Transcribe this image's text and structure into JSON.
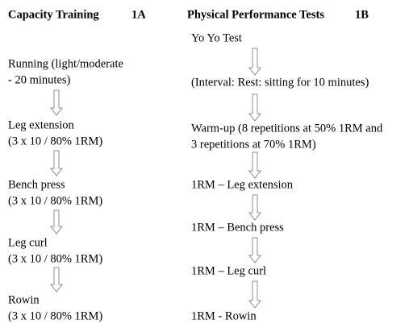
{
  "columns": [
    {
      "title": "Capacity Training",
      "code": "1A",
      "steps": [
        [
          "Running (light/moderate",
          "- 20 minutes)"
        ],
        [
          "Leg extension",
          "(3 x 10 / 80% 1RM)"
        ],
        [
          "Bench press",
          "(3 x 10 / 80% 1RM)"
        ],
        [
          "Leg curl",
          "(3 x 10 / 80% 1RM)"
        ],
        [
          "Rowin",
          "(3 x 10 / 80% 1RM)"
        ]
      ]
    },
    {
      "title": "Physical Performance Tests",
      "code": "1B",
      "steps": [
        [
          "Yo Yo Test"
        ],
        [
          "(Interval: Rest: sitting for 10 minutes)"
        ],
        [
          "Warm-up (8 repetitions at 50% 1RM and",
          "3 repetitions at 70% 1RM)"
        ],
        [
          "1RM – Leg extension"
        ],
        [
          "1RM – Bench press"
        ],
        [
          "1RM – Leg curl"
        ],
        [
          "1RM - Rowin"
        ]
      ]
    }
  ]
}
